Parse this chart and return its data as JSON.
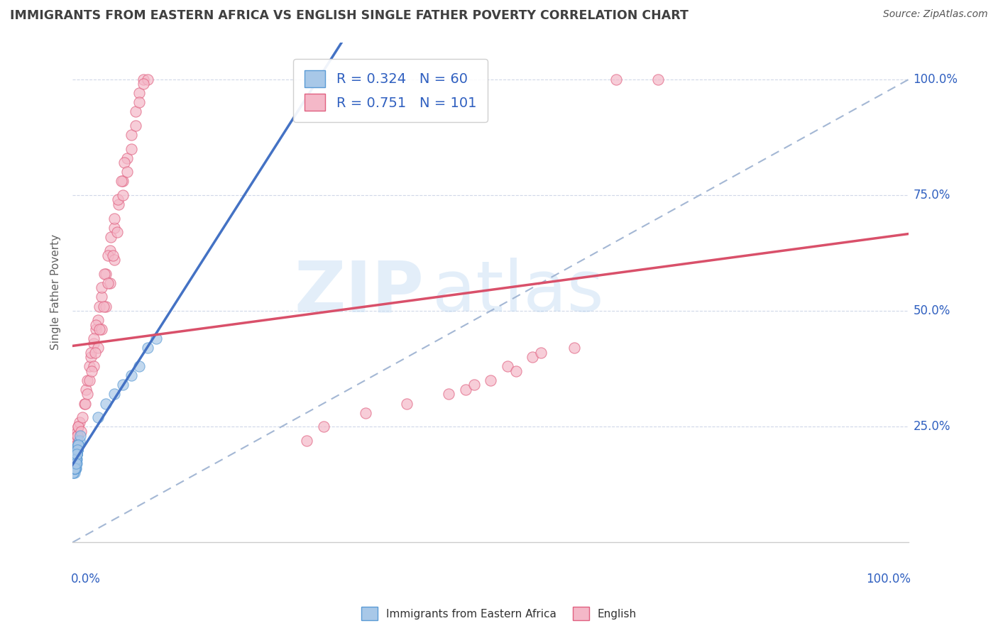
{
  "title": "IMMIGRANTS FROM EASTERN AFRICA VS ENGLISH SINGLE FATHER POVERTY CORRELATION CHART",
  "source": "Source: ZipAtlas.com",
  "ylabel": "Single Father Poverty",
  "legend_labels": [
    "Immigrants from Eastern Africa",
    "English"
  ],
  "blue_R": 0.324,
  "blue_N": 60,
  "pink_R": 0.751,
  "pink_N": 101,
  "watermark_zip": "ZIP",
  "watermark_atlas": "atlas",
  "blue_color": "#a8c8e8",
  "blue_edge_color": "#5b9bd5",
  "pink_color": "#f4b8c8",
  "pink_edge_color": "#e06080",
  "blue_line_color": "#4472c4",
  "pink_line_color": "#d9506a",
  "dash_line_color": "#9ab0d0",
  "background_color": "#ffffff",
  "grid_color": "#d0d8e8",
  "title_color": "#404040",
  "axis_label_color": "#3060c0",
  "source_color": "#555555",
  "ylabel_color": "#606060",
  "xlim": [
    0.0,
    1.0
  ],
  "ylim": [
    0.0,
    1.08
  ],
  "yticks": [
    0.25,
    0.5,
    0.75,
    1.0
  ],
  "ytick_labels": [
    "25.0%",
    "50.0%",
    "75.0%",
    "100.0%"
  ],
  "blue_scatter": [
    [
      0.003,
      0.17
    ],
    [
      0.004,
      0.16
    ],
    [
      0.002,
      0.18
    ],
    [
      0.001,
      0.17
    ],
    [
      0.005,
      0.19
    ],
    [
      0.003,
      0.16
    ],
    [
      0.002,
      0.15
    ],
    [
      0.004,
      0.17
    ],
    [
      0.001,
      0.16
    ],
    [
      0.003,
      0.18
    ],
    [
      0.002,
      0.16
    ],
    [
      0.005,
      0.18
    ],
    [
      0.004,
      0.19
    ],
    [
      0.001,
      0.15
    ],
    [
      0.003,
      0.17
    ],
    [
      0.002,
      0.16
    ],
    [
      0.006,
      0.2
    ],
    [
      0.004,
      0.18
    ],
    [
      0.003,
      0.19
    ],
    [
      0.005,
      0.17
    ],
    [
      0.007,
      0.21
    ],
    [
      0.004,
      0.18
    ],
    [
      0.002,
      0.16
    ],
    [
      0.003,
      0.17
    ],
    [
      0.001,
      0.15
    ],
    [
      0.005,
      0.19
    ],
    [
      0.003,
      0.17
    ],
    [
      0.008,
      0.22
    ],
    [
      0.006,
      0.2
    ],
    [
      0.007,
      0.21
    ],
    [
      0.005,
      0.19
    ],
    [
      0.002,
      0.16
    ],
    [
      0.004,
      0.18
    ],
    [
      0.003,
      0.17
    ],
    [
      0.002,
      0.16
    ],
    [
      0.004,
      0.18
    ],
    [
      0.003,
      0.17
    ],
    [
      0.007,
      0.21
    ],
    [
      0.005,
      0.19
    ],
    [
      0.006,
      0.2
    ],
    [
      0.003,
      0.16
    ],
    [
      0.005,
      0.19
    ],
    [
      0.004,
      0.18
    ],
    [
      0.002,
      0.16
    ],
    [
      0.009,
      0.23
    ],
    [
      0.007,
      0.21
    ],
    [
      0.004,
      0.18
    ],
    [
      0.006,
      0.2
    ],
    [
      0.003,
      0.16
    ],
    [
      0.005,
      0.19
    ],
    [
      0.002,
      0.16
    ],
    [
      0.004,
      0.17
    ],
    [
      0.07,
      0.36
    ],
    [
      0.08,
      0.38
    ],
    [
      0.09,
      0.42
    ],
    [
      0.06,
      0.34
    ],
    [
      0.1,
      0.44
    ],
    [
      0.03,
      0.27
    ],
    [
      0.04,
      0.3
    ],
    [
      0.05,
      0.32
    ]
  ],
  "pink_scatter": [
    [
      0.003,
      0.18
    ],
    [
      0.004,
      0.19
    ],
    [
      0.002,
      0.17
    ],
    [
      0.005,
      0.2
    ],
    [
      0.003,
      0.16
    ],
    [
      0.004,
      0.21
    ],
    [
      0.002,
      0.18
    ],
    [
      0.003,
      0.19
    ],
    [
      0.005,
      0.22
    ],
    [
      0.004,
      0.2
    ],
    [
      0.003,
      0.17
    ],
    [
      0.006,
      0.23
    ],
    [
      0.004,
      0.19
    ],
    [
      0.005,
      0.21
    ],
    [
      0.003,
      0.18
    ],
    [
      0.004,
      0.2
    ],
    [
      0.006,
      0.24
    ],
    [
      0.005,
      0.22
    ],
    [
      0.003,
      0.18
    ],
    [
      0.004,
      0.2
    ],
    [
      0.007,
      0.25
    ],
    [
      0.005,
      0.22
    ],
    [
      0.004,
      0.2
    ],
    [
      0.006,
      0.23
    ],
    [
      0.003,
      0.17
    ],
    [
      0.005,
      0.21
    ],
    [
      0.004,
      0.19
    ],
    [
      0.008,
      0.26
    ],
    [
      0.006,
      0.23
    ],
    [
      0.007,
      0.25
    ],
    [
      0.005,
      0.21
    ],
    [
      0.003,
      0.18
    ],
    [
      0.01,
      0.24
    ],
    [
      0.012,
      0.27
    ],
    [
      0.014,
      0.3
    ],
    [
      0.016,
      0.33
    ],
    [
      0.018,
      0.35
    ],
    [
      0.02,
      0.38
    ],
    [
      0.022,
      0.4
    ],
    [
      0.025,
      0.43
    ],
    [
      0.028,
      0.46
    ],
    [
      0.03,
      0.48
    ],
    [
      0.035,
      0.53
    ],
    [
      0.04,
      0.58
    ],
    [
      0.045,
      0.63
    ],
    [
      0.05,
      0.68
    ],
    [
      0.055,
      0.73
    ],
    [
      0.06,
      0.78
    ],
    [
      0.065,
      0.83
    ],
    [
      0.07,
      0.88
    ],
    [
      0.075,
      0.93
    ],
    [
      0.08,
      0.97
    ],
    [
      0.085,
      1.0
    ],
    [
      0.09,
      1.0
    ],
    [
      0.022,
      0.41
    ],
    [
      0.025,
      0.44
    ],
    [
      0.028,
      0.47
    ],
    [
      0.032,
      0.51
    ],
    [
      0.035,
      0.55
    ],
    [
      0.038,
      0.58
    ],
    [
      0.042,
      0.62
    ],
    [
      0.046,
      0.66
    ],
    [
      0.05,
      0.7
    ],
    [
      0.054,
      0.74
    ],
    [
      0.058,
      0.78
    ],
    [
      0.062,
      0.82
    ],
    [
      0.025,
      0.38
    ],
    [
      0.03,
      0.42
    ],
    [
      0.035,
      0.46
    ],
    [
      0.04,
      0.51
    ],
    [
      0.045,
      0.56
    ],
    [
      0.05,
      0.61
    ],
    [
      0.015,
      0.3
    ],
    [
      0.02,
      0.35
    ],
    [
      0.018,
      0.32
    ],
    [
      0.023,
      0.37
    ],
    [
      0.027,
      0.41
    ],
    [
      0.032,
      0.46
    ],
    [
      0.037,
      0.51
    ],
    [
      0.042,
      0.56
    ],
    [
      0.048,
      0.62
    ],
    [
      0.053,
      0.67
    ],
    [
      0.06,
      0.75
    ],
    [
      0.065,
      0.8
    ],
    [
      0.07,
      0.85
    ],
    [
      0.075,
      0.9
    ],
    [
      0.08,
      0.95
    ],
    [
      0.085,
      0.99
    ],
    [
      0.3,
      0.25
    ],
    [
      0.35,
      0.28
    ],
    [
      0.28,
      0.22
    ],
    [
      0.5,
      0.35
    ],
    [
      0.45,
      0.32
    ],
    [
      0.52,
      0.38
    ],
    [
      0.4,
      0.3
    ],
    [
      0.55,
      0.4
    ],
    [
      0.47,
      0.33
    ],
    [
      0.6,
      0.42
    ],
    [
      0.65,
      1.0
    ],
    [
      0.7,
      1.0
    ],
    [
      0.48,
      0.34
    ],
    [
      0.53,
      0.37
    ],
    [
      0.56,
      0.41
    ]
  ]
}
